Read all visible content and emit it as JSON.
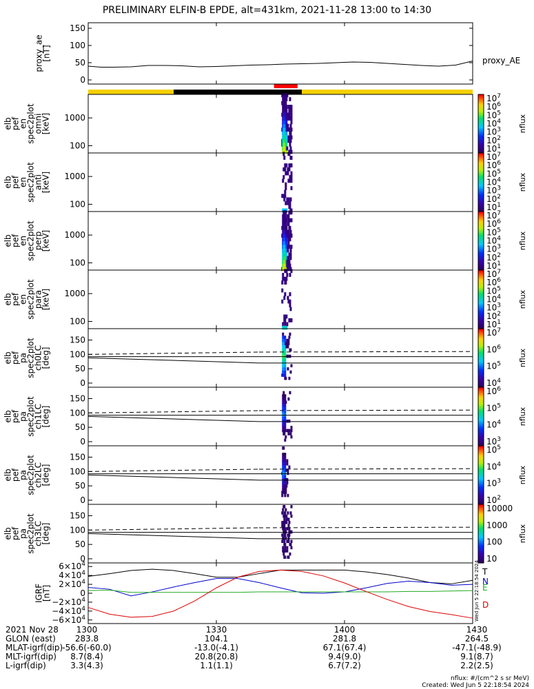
{
  "title": "PRELIMINARY ELFIN-B EPDE, alt=431km, 2021-11-28 13:00 to 14:30",
  "colors": {
    "yellow_bar": "#f5d000",
    "black_bar": "#000000",
    "red_bar": "#ff0000",
    "igrf_T": "#000000",
    "igrf_N": "#0000cc",
    "igrf_E": "#22aa22",
    "igrf_D": "#dd0000"
  },
  "chart_data": [
    {
      "type": "line",
      "name": "proxy_ae",
      "ylabel_lines": [
        "proxy_ae",
        "[nT]"
      ],
      "legend": "proxy_AE",
      "yticks": [
        "150",
        "100",
        "50",
        "0"
      ],
      "ylim": [
        0,
        160
      ],
      "x_minutes": [
        0,
        3,
        6,
        10,
        14,
        18,
        22,
        26,
        30,
        34,
        38,
        42,
        46,
        50,
        54,
        58,
        62,
        66,
        70,
        74,
        78,
        82,
        86,
        90
      ],
      "y": [
        40,
        37,
        37,
        38,
        42,
        42,
        41,
        38,
        39,
        41,
        43,
        44,
        46,
        47,
        48,
        50,
        52,
        51,
        48,
        45,
        42,
        40,
        43,
        55
      ]
    },
    {
      "type": "heatmap",
      "name": "omni energy spectrogram",
      "ylabel_lines": [
        "elb",
        "pef",
        "en",
        "spec2plot",
        "omni",
        "[keV]"
      ],
      "yticks": [
        "1000",
        "100"
      ],
      "colorbar_ticks": [
        "10^7",
        "10^6",
        "10^5",
        "10^4",
        "10^3",
        "10^2",
        "10^1"
      ],
      "colorbar_label": "nflux",
      "data_minutes": [
        45.2,
        47.5
      ],
      "description_points": [
        [
          45.5,
          100,
          6.0
        ],
        [
          46.0,
          150,
          5.5
        ],
        [
          46.2,
          300,
          4.5
        ],
        [
          46.5,
          700,
          3.0
        ]
      ]
    },
    {
      "type": "heatmap",
      "name": "anti energy spectrogram",
      "ylabel_lines": [
        "elb",
        "pef",
        "en",
        "spec2plot",
        "anti",
        "[keV]"
      ],
      "yticks": [
        "1000",
        "100"
      ],
      "colorbar_ticks": [
        "10^7",
        "10^6",
        "10^5",
        "10^4",
        "10^3",
        "10^2",
        "10^1"
      ],
      "colorbar_label": "nflux",
      "data_minutes": [
        45.2,
        47.5
      ]
    },
    {
      "type": "heatmap",
      "name": "perp energy spectrogram",
      "ylabel_lines": [
        "elb",
        "pef",
        "en",
        "spec2plot",
        "perp",
        "[keV]"
      ],
      "yticks": [
        "1000",
        "100"
      ],
      "colorbar_ticks": [
        "10^7",
        "10^6",
        "10^5",
        "10^4",
        "10^3",
        "10^2",
        "10^1"
      ],
      "colorbar_label": "nflux",
      "data_minutes": [
        45.2,
        47.5
      ]
    },
    {
      "type": "heatmap",
      "name": "para energy spectrogram",
      "ylabel_lines": [
        "elb",
        "pef",
        "en",
        "spec2plot",
        "para",
        "[keV]"
      ],
      "yticks": [
        "1000",
        "100"
      ],
      "colorbar_ticks": [
        "10^7",
        "10^6",
        "10^5",
        "10^4",
        "10^3",
        "10^2",
        "10^1"
      ],
      "colorbar_label": "nflux",
      "data_minutes": [
        45.2,
        47.5
      ]
    },
    {
      "type": "heatmap",
      "name": "ch0LC pitch-angle spectrogram",
      "ylabel_lines": [
        "elb",
        "pef",
        "pa",
        "spec2plot",
        "ch0LC",
        "[deg]"
      ],
      "yticks": [
        "150",
        "100",
        "50",
        "0"
      ],
      "ylim": [
        0,
        180
      ],
      "colorbar_ticks": [
        "10^7",
        "10^6",
        "10^5",
        "10^4"
      ],
      "colorbar_label": "nflux",
      "data_minutes": [
        45.2,
        47.5
      ]
    },
    {
      "type": "heatmap",
      "name": "ch1LC pitch-angle spectrogram",
      "ylabel_lines": [
        "elb",
        "pef",
        "pa",
        "spec2plot",
        "ch1LC",
        "[deg]"
      ],
      "yticks": [
        "150",
        "100",
        "50",
        "0"
      ],
      "ylim": [
        0,
        180
      ],
      "colorbar_ticks": [
        "10^6",
        "10^5",
        "10^4",
        "10^3"
      ],
      "colorbar_label": "nflux",
      "data_minutes": [
        45.2,
        47.5
      ]
    },
    {
      "type": "heatmap",
      "name": "ch2LC pitch-angle spectrogram",
      "ylabel_lines": [
        "elb",
        "pef",
        "pa",
        "spec2plot",
        "ch2LC",
        "[deg]"
      ],
      "yticks": [
        "150",
        "100",
        "50",
        "0"
      ],
      "ylim": [
        0,
        180
      ],
      "colorbar_ticks": [
        "10^5",
        "10^4",
        "10^3",
        "10^2"
      ],
      "colorbar_label": "nflux",
      "data_minutes": [
        45.2,
        47.5
      ]
    },
    {
      "type": "heatmap",
      "name": "ch3LC pitch-angle spectrogram",
      "ylabel_lines": [
        "elb",
        "pef",
        "pa",
        "spec2plot",
        "ch3LC",
        "[deg]"
      ],
      "yticks": [
        "150",
        "100",
        "50",
        "0"
      ],
      "ylim": [
        0,
        180
      ],
      "colorbar_ticks": [
        "10000",
        "1000",
        "100",
        "10"
      ],
      "colorbar_label": "nflux",
      "data_minutes": [
        45.2,
        47.5
      ]
    },
    {
      "type": "line",
      "name": "IGRF",
      "ylabel_lines": [
        "IGRF",
        "[nT]"
      ],
      "yticks": [
        "6×10^4",
        "4×10^4",
        "2×10^4",
        "0",
        "−2×10^4",
        "−4×10^4",
        "−6×10^4"
      ],
      "ylim": [
        -65000,
        65000
      ],
      "x_minutes": [
        0,
        5,
        10,
        15,
        20,
        25,
        30,
        35,
        40,
        45,
        50,
        55,
        60,
        65,
        70,
        75,
        80,
        85,
        90
      ],
      "series": [
        {
          "name": "T",
          "values": [
            38000,
            44000,
            51000,
            54000,
            51000,
            44000,
            36000,
            36000,
            44000,
            52000,
            52000,
            52000,
            52000,
            48000,
            42000,
            34000,
            24000,
            21000,
            29000
          ]
        },
        {
          "name": "N",
          "values": [
            13000,
            9000,
            -6000,
            3000,
            14000,
            24000,
            33000,
            33000,
            24000,
            12000,
            1000,
            0,
            3000,
            12000,
            22000,
            27000,
            24000,
            18000,
            20000
          ]
        },
        {
          "name": "E",
          "values": [
            6000,
            7000,
            2000,
            2000,
            2000,
            2000,
            2000,
            2000,
            3000,
            3000,
            3000,
            3000,
            3000,
            3000,
            3000,
            4000,
            4000,
            5000,
            6000
          ]
        },
        {
          "name": "D",
          "values": [
            -32000,
            -47000,
            -54000,
            -52000,
            -40000,
            -17000,
            12000,
            36000,
            49000,
            52000,
            49000,
            39000,
            23000,
            4000,
            -14000,
            -30000,
            -41000,
            -48000,
            -56000
          ]
        }
      ]
    }
  ],
  "xaxis": {
    "ticks": [
      "1300",
      "1330",
      "1400",
      "1430"
    ],
    "rows": [
      {
        "label": "2021 Nov 28",
        "values": [
          "1300",
          "1330",
          "1400",
          "1430"
        ]
      },
      {
        "label": "GLON (east)",
        "values": [
          "283.8",
          "104.1",
          "281.8",
          "264.5"
        ]
      },
      {
        "label": "MLAT-igrf(dip)",
        "values": [
          "-56.6(-60.0)",
          "-13.0(-4.1)",
          "67.1(67.4)",
          "-47.1(-48.9)"
        ]
      },
      {
        "label": "MLT-igrf(dip)",
        "values": [
          "8.7(8.4)",
          "20.8(20.8)",
          "9.4(9.0)",
          "9.1(8.7)"
        ]
      },
      {
        "label": "L-igrf(dip)",
        "values": [
          "3.3(4.3)",
          "1.1(1.1)",
          "6.7(7.2)",
          "2.2(2.5)"
        ]
      }
    ]
  },
  "footer": {
    "units": "nflux: #/(cm^2 s sr MeV)",
    "created": "Created: Wed Jun  5 22:18:54 2024",
    "side_stamp": "Wed Jun  5 22:18:54 2024"
  }
}
